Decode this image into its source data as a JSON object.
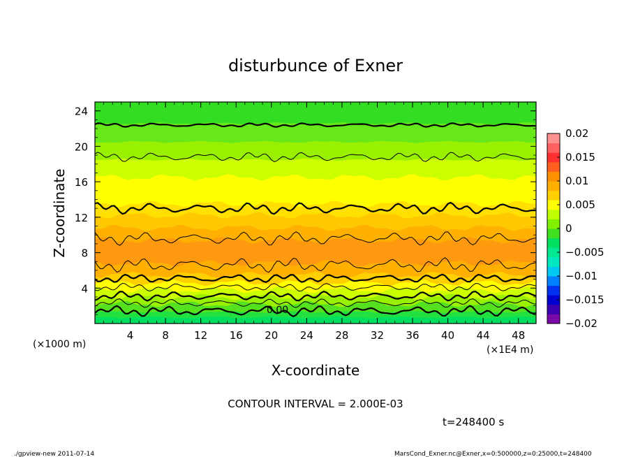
{
  "chart_data": {
    "type": "heatmap",
    "title": "disturbunce of Exner",
    "xlabel": "X-coordinate",
    "ylabel": "Z-coordinate",
    "x_unit": "(×1E4 m)",
    "y_unit": "(×1000 m)",
    "xlim": [
      0,
      50
    ],
    "ylim": [
      0,
      25
    ],
    "x_ticks": [
      "4",
      "8",
      "12",
      "16",
      "20",
      "24",
      "28",
      "32",
      "36",
      "40",
      "44",
      "48"
    ],
    "y_ticks": [
      "4",
      "8",
      "12",
      "16",
      "20",
      "24"
    ],
    "colorbar": {
      "min": -0.02,
      "max": 0.02,
      "tick_labels": [
        "0.02",
        "0.015",
        "0.01",
        "0.005",
        "0",
        "−0.005",
        "−0.01",
        "−0.015",
        "−0.02"
      ],
      "colors": [
        "#7a0aa8",
        "#3b00b0",
        "#0000d0",
        "#0030f0",
        "#0080ff",
        "#00c8f0",
        "#00e8c0",
        "#00e890",
        "#00e060",
        "#40e020",
        "#80f000",
        "#c0ff00",
        "#ffff00",
        "#ffd000",
        "#ffb000",
        "#ff9000",
        "#ff6020",
        "#ff3030",
        "#ff6060",
        "#ff9090"
      ]
    },
    "contour_label": "0.00",
    "contour_interval_text": "CONTOUR INTERVAL = 2.000E-03",
    "time_text": "t=248400 s"
  },
  "footer": {
    "left": "./gpview-new  2011-07-14",
    "right": "MarsCond_Exner.nc@Exner,x=0:500000,z=0:25000,t=248400"
  }
}
